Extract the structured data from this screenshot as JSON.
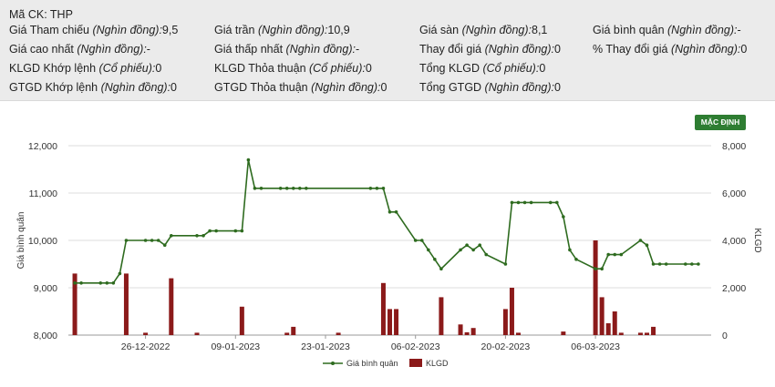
{
  "info": {
    "symbol_label": "Mã CK: THP",
    "rows": [
      [
        {
          "label": "Giá Tham chiếu",
          "unit": "(Nghìn đồng):",
          "value": "9,5"
        },
        {
          "label": "Giá trần",
          "unit": "(Nghìn đồng):",
          "value": "10,9"
        },
        {
          "label": "Giá sàn",
          "unit": "(Nghìn đồng):",
          "value": "8,1"
        },
        {
          "label": "Giá bình quân",
          "unit": "(Nghìn đồng):",
          "value": "-"
        }
      ],
      [
        {
          "label": "Giá cao nhất",
          "unit": "(Nghìn đồng):",
          "value": "-"
        },
        {
          "label": "Giá thấp nhất",
          "unit": "(Nghìn đồng):",
          "value": "-"
        },
        {
          "label": "Thay đổi giá",
          "unit": "(Nghìn đồng):",
          "value": "0"
        },
        {
          "label": "% Thay đổi giá",
          "unit": "(Nghìn đồng):",
          "value": "0"
        }
      ],
      [
        {
          "label": "KLGD Khớp lệnh",
          "unit": "(Cổ phiếu):",
          "value": "0"
        },
        {
          "label": "KLGD Thỏa thuận",
          "unit": "(Cổ phiếu):",
          "value": "0"
        },
        {
          "label": "Tổng KLGD",
          "unit": "(Cổ phiếu):",
          "value": "0"
        }
      ],
      [
        {
          "label": "GTGD Khớp lệnh",
          "unit": "(Nghìn đồng):",
          "value": "0"
        },
        {
          "label": "GTGD Thỏa thuận",
          "unit": "(Nghìn đồng):",
          "value": "0"
        },
        {
          "label": "Tổng GTGD",
          "unit": "(Nghìn đồng):",
          "value": "0"
        }
      ]
    ]
  },
  "default_button": "MẶC ĐỊNH",
  "colors": {
    "line": "#2e6b1f",
    "bar": "#8b1a1a",
    "button": "#2e7d32"
  },
  "chart_data": {
    "type": "line+bar",
    "x_tick_labels": [
      "26-12-2022",
      "09-01-2023",
      "23-01-2023",
      "06-02-2023",
      "20-02-2023",
      "06-03-2023"
    ],
    "y_left_label": "Giá bình quân",
    "y_left_ticks": [
      "8,000",
      "9,000",
      "10,000",
      "11,000",
      "12,000"
    ],
    "y_left_range": [
      8000,
      12000
    ],
    "y_right_label": "KLGD",
    "y_right_ticks": [
      "0",
      "2,000",
      "4,000",
      "6,000",
      "8,000"
    ],
    "y_right_range": [
      0,
      8000
    ],
    "grid": "horizontal",
    "legend_position": "bottom-center",
    "series": [
      {
        "name": "Giá bình quân",
        "type": "line",
        "axis": "left",
        "points": [
          [
            "2022-12-15",
            9100
          ],
          [
            "2022-12-16",
            9100
          ],
          [
            "2022-12-19",
            9100
          ],
          [
            "2022-12-20",
            9100
          ],
          [
            "2022-12-21",
            9100
          ],
          [
            "2022-12-22",
            9300
          ],
          [
            "2022-12-23",
            10000
          ],
          [
            "2022-12-26",
            10000
          ],
          [
            "2022-12-27",
            10000
          ],
          [
            "2022-12-28",
            10000
          ],
          [
            "2022-12-29",
            9900
          ],
          [
            "2022-12-30",
            10100
          ],
          [
            "2023-01-03",
            10100
          ],
          [
            "2023-01-04",
            10100
          ],
          [
            "2023-01-05",
            10200
          ],
          [
            "2023-01-06",
            10200
          ],
          [
            "2023-01-09",
            10200
          ],
          [
            "2023-01-10",
            10200
          ],
          [
            "2023-01-11",
            11700
          ],
          [
            "2023-01-12",
            11100
          ],
          [
            "2023-01-13",
            11100
          ],
          [
            "2023-01-16",
            11100
          ],
          [
            "2023-01-17",
            11100
          ],
          [
            "2023-01-18",
            11100
          ],
          [
            "2023-01-19",
            11100
          ],
          [
            "2023-01-20",
            11100
          ],
          [
            "2023-01-30",
            11100
          ],
          [
            "2023-01-31",
            11100
          ],
          [
            "2023-02-01",
            11100
          ],
          [
            "2023-02-02",
            10600
          ],
          [
            "2023-02-03",
            10600
          ],
          [
            "2023-02-06",
            10000
          ],
          [
            "2023-02-07",
            10000
          ],
          [
            "2023-02-08",
            9800
          ],
          [
            "2023-02-09",
            9600
          ],
          [
            "2023-02-10",
            9400
          ],
          [
            "2023-02-13",
            9800
          ],
          [
            "2023-02-14",
            9900
          ],
          [
            "2023-02-15",
            9800
          ],
          [
            "2023-02-16",
            9900
          ],
          [
            "2023-02-17",
            9700
          ],
          [
            "2023-02-20",
            9500
          ],
          [
            "2023-02-21",
            10800
          ],
          [
            "2023-02-22",
            10800
          ],
          [
            "2023-02-23",
            10800
          ],
          [
            "2023-02-24",
            10800
          ],
          [
            "2023-02-27",
            10800
          ],
          [
            "2023-02-28",
            10800
          ],
          [
            "2023-03-01",
            10500
          ],
          [
            "2023-03-02",
            9800
          ],
          [
            "2023-03-03",
            9600
          ],
          [
            "2023-03-06",
            9400
          ],
          [
            "2023-03-07",
            9400
          ],
          [
            "2023-03-08",
            9700
          ],
          [
            "2023-03-09",
            9700
          ],
          [
            "2023-03-10",
            9700
          ],
          [
            "2023-03-13",
            10000
          ],
          [
            "2023-03-14",
            9900
          ],
          [
            "2023-03-15",
            9500
          ],
          [
            "2023-03-16",
            9500
          ],
          [
            "2023-03-17",
            9500
          ],
          [
            "2023-03-20",
            9500
          ],
          [
            "2023-03-21",
            9500
          ],
          [
            "2023-03-22",
            9500
          ]
        ]
      },
      {
        "name": "KLGD",
        "type": "bar",
        "axis": "right",
        "points": [
          [
            "2022-12-15",
            2600
          ],
          [
            "2022-12-23",
            2600
          ],
          [
            "2022-12-26",
            100
          ],
          [
            "2022-12-30",
            2400
          ],
          [
            "2023-01-03",
            100
          ],
          [
            "2023-01-10",
            1200
          ],
          [
            "2023-01-17",
            100
          ],
          [
            "2023-01-18",
            350
          ],
          [
            "2023-01-25",
            100
          ],
          [
            "2023-02-01",
            2200
          ],
          [
            "2023-02-02",
            1100
          ],
          [
            "2023-02-03",
            1100
          ],
          [
            "2023-02-10",
            1600
          ],
          [
            "2023-02-13",
            450
          ],
          [
            "2023-02-14",
            120
          ],
          [
            "2023-02-15",
            300
          ],
          [
            "2023-02-20",
            1100
          ],
          [
            "2023-02-21",
            2000
          ],
          [
            "2023-02-22",
            100
          ],
          [
            "2023-03-01",
            150
          ],
          [
            "2023-03-06",
            4000
          ],
          [
            "2023-03-07",
            1600
          ],
          [
            "2023-03-08",
            500
          ],
          [
            "2023-03-09",
            1000
          ],
          [
            "2023-03-10",
            100
          ],
          [
            "2023-03-13",
            100
          ],
          [
            "2023-03-14",
            100
          ],
          [
            "2023-03-15",
            350
          ]
        ]
      }
    ]
  }
}
